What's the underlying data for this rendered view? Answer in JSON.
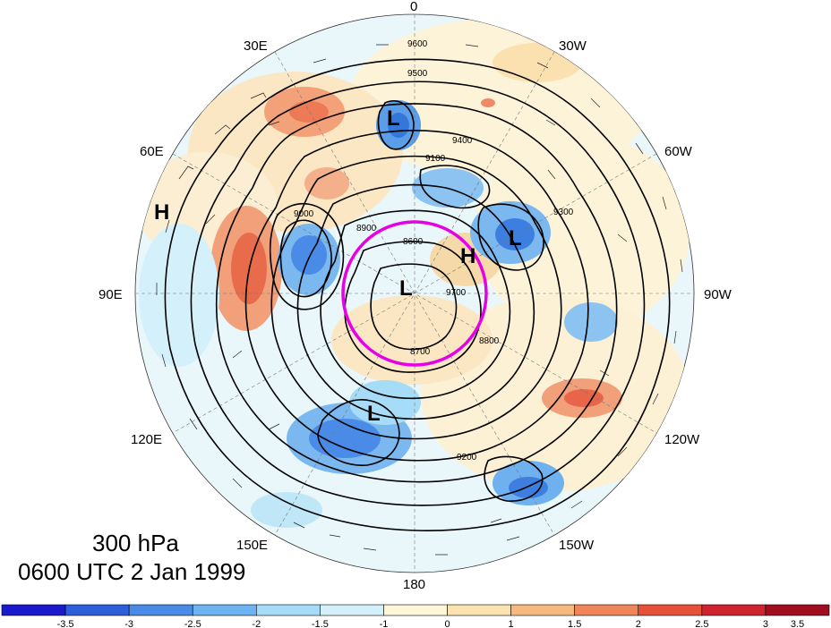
{
  "map": {
    "projection": "north-polar-stereographic",
    "level_label": "300 hPa",
    "time_label": "0600 UTC 2 Jan 1999",
    "longitude_labels": [
      "0",
      "30W",
      "60W",
      "90W",
      "120W",
      "150W",
      "180",
      "150E",
      "120E",
      "90E",
      "60E",
      "30E"
    ],
    "contour_labels": [
      "9600",
      "9500",
      "9400",
      "9300",
      "9200",
      "9100",
      "9000",
      "8900",
      "8800",
      "8700",
      "9700",
      "8600"
    ],
    "pressure_centers": [
      "L",
      "L",
      "L",
      "L",
      "H",
      "H"
    ],
    "highlight_color": "#e600e6",
    "colors": {
      "positive": "#e8553c",
      "negative": "#3d7fe0",
      "contour": "#000000"
    }
  },
  "colorbar": {
    "labels": [
      "-3.5",
      "-3",
      "-2.5",
      "-2",
      "-1.5",
      "-1",
      "0",
      "1",
      "1.5",
      "2",
      "2.5",
      "3",
      "3.5"
    ],
    "colors": [
      "#1a1acc",
      "#2e5ed9",
      "#4a8be8",
      "#6fb4f2",
      "#a6dcf7",
      "#d4f1fb",
      "#fdf6d9",
      "#fbe3b0",
      "#f6b980",
      "#ef8659",
      "#e6513a",
      "#cf2330",
      "#a00d1e"
    ]
  }
}
